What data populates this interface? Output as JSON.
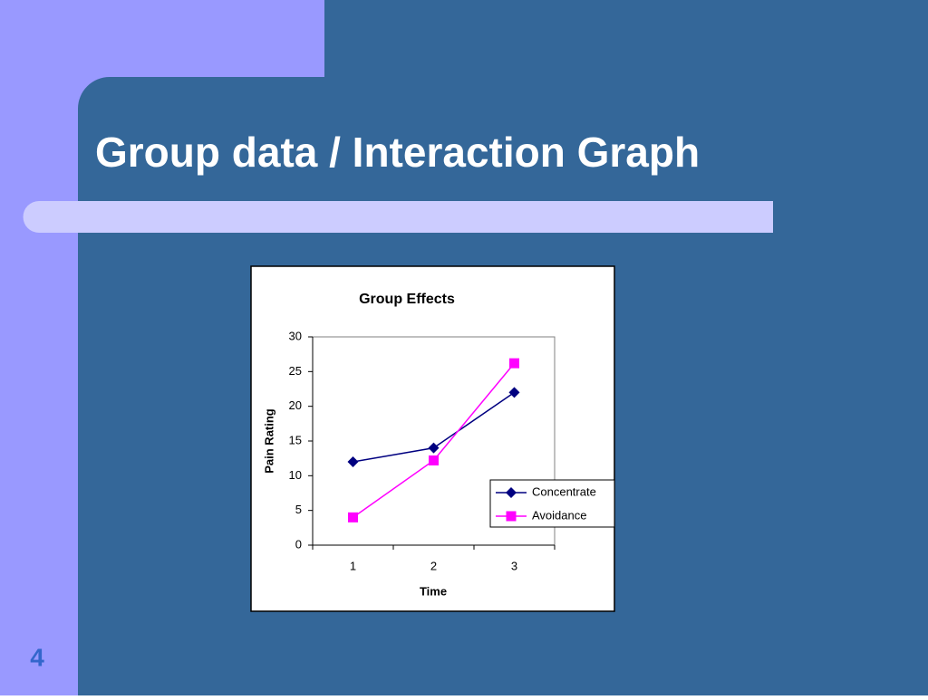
{
  "slide": {
    "title": "Group data / Interaction Graph",
    "page_number": "4"
  },
  "chart_data": {
    "type": "line",
    "title": "Group Effects",
    "x_label": "Time",
    "y_label": "Pain Rating",
    "categories": [
      "1",
      "2",
      "3"
    ],
    "series": [
      {
        "name": "Concentrate",
        "color": "#000080",
        "marker": "diamond",
        "values": [
          12,
          14,
          22
        ]
      },
      {
        "name": "Avoidance",
        "color": "#ff00ff",
        "marker": "square",
        "values": [
          4,
          12.2,
          26.2
        ]
      }
    ],
    "ylim": [
      0,
      30
    ],
    "yticks": [
      0,
      5,
      10,
      15,
      20,
      25,
      30
    ],
    "grid": false,
    "legend": "right"
  }
}
